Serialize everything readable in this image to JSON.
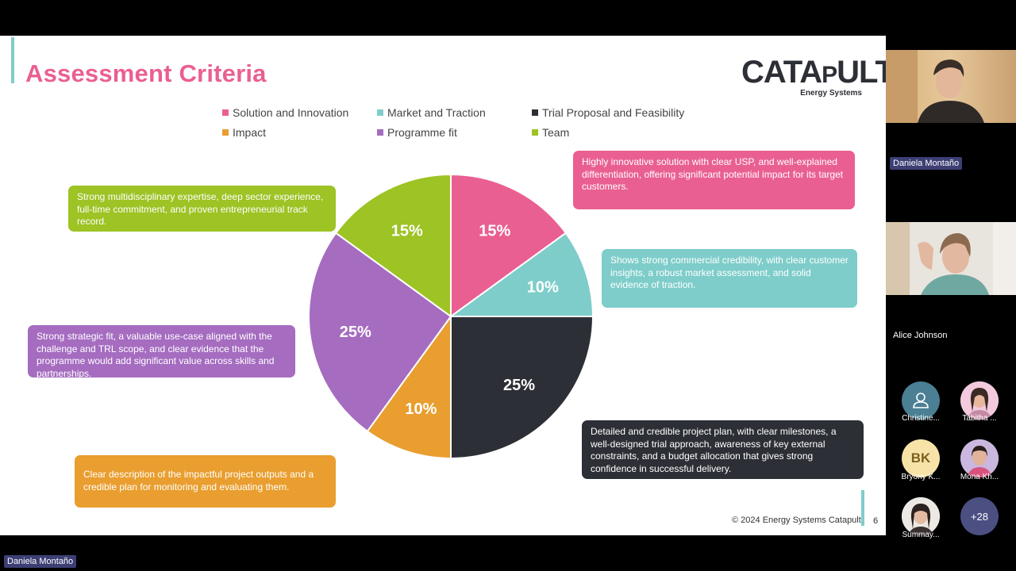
{
  "slide": {
    "title": "Assessment Criteria",
    "logo_text_big": "CATA",
    "logo_text_small": "P",
    "logo_text_end": "ULT",
    "logo_sub": "Energy Systems",
    "copyright": "© 2024 Energy Systems Catapult",
    "page_number": "6"
  },
  "legend": [
    {
      "label": "Solution and Innovation",
      "color": "#ea5f92"
    },
    {
      "label": "Market and Traction",
      "color": "#7ecdca"
    },
    {
      "label": "Trial Proposal and Feasibility",
      "color": "#2d2f36"
    },
    {
      "label": "Impact",
      "color": "#e99e2f"
    },
    {
      "label": "Programme fit",
      "color": "#a56cc0"
    },
    {
      "label": "Team",
      "color": "#9dc324"
    }
  ],
  "chart_data": {
    "type": "pie",
    "categories": [
      "Solution and Innovation",
      "Market and Traction",
      "Trial Proposal and Feasibility",
      "Impact",
      "Programme fit",
      "Team"
    ],
    "values": [
      15,
      10,
      25,
      10,
      25,
      15
    ],
    "labels": [
      "15%",
      "10%",
      "25%",
      "10%",
      "25%",
      "15%"
    ],
    "colors": [
      "#ea5f92",
      "#7ecdca",
      "#2d2f36",
      "#e99e2f",
      "#a56cc0",
      "#9dc324"
    ],
    "legend_position": "top"
  },
  "descriptions": {
    "solution": "Highly innovative solution with clear USP, and well-explained differentiation, offering significant potential impact for its target customers.",
    "market": "Shows strong commercial credibility, with clear customer insights, a robust market assessment, and solid evidence of traction.",
    "trial": "Detailed and credible project plan, with clear milestones, a well-designed trial approach, awareness of key external constraints, and a budget allocation that gives strong confidence in successful delivery.",
    "impact": "Clear description of the impactful project outputs and a credible plan for monitoring and evaluating them.",
    "programme": "Strong strategic fit, a valuable use-case aligned with the challenge and TRL scope, and clear evidence that the programme would add significant value across skills and partnerships.",
    "team": "Strong multidisciplinary expertise, deep sector experience, full-time commitment, and proven entrepreneurial track record."
  },
  "participants": {
    "presenter_tag": "Daniela Montaño",
    "video1_name": "Daniela Montaño",
    "video2_name": "Alice Johnson",
    "thumbs": [
      {
        "name": "Christine...",
        "initials": ""
      },
      {
        "name": "Tabitha ...",
        "initials": ""
      },
      {
        "name": "Bryony K...",
        "initials": "BK"
      },
      {
        "name": "Mona Kh...",
        "initials": ""
      },
      {
        "name": "Summay...",
        "initials": ""
      }
    ],
    "more_count": "+28"
  }
}
